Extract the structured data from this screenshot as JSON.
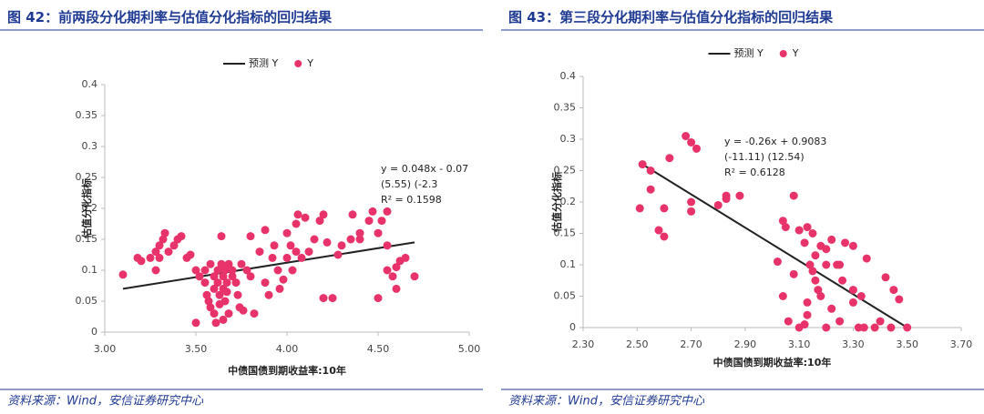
{
  "chart_data": [
    {
      "type": "scatter",
      "title": "图 42：前两段分化期利率与估值分化指标的回归结果",
      "x_label": "中债国债到期收益率:10年",
      "y_label": "估值分化指标",
      "annotations": [
        "y = 0.048x - 0.07",
        "(5.55)   (-2.3",
        "R² = 0.1598"
      ],
      "source": "资料来源：Wind，安信证券研究中心",
      "xlim": [
        3,
        5
      ],
      "xticks": [
        {
          "value": 3,
          "label": "3.00"
        },
        {
          "value": 3.5,
          "label": "3.50"
        },
        {
          "value": 4,
          "label": "4.00"
        },
        {
          "value": 4.5,
          "label": "4.50"
        },
        {
          "value": 5,
          "label": "5.00"
        }
      ],
      "ylim": [
        0,
        0.4
      ],
      "yticks": [
        0,
        0.05,
        0.1,
        0.15,
        0.2,
        0.25,
        0.3,
        0.35,
        0.4
      ],
      "series": [
        {
          "name": "预测 Y",
          "type": "line",
          "color": "#222222",
          "x": [
            3.1,
            4.7
          ],
          "values": [
            0.07,
            0.145
          ]
        },
        {
          "name": "Y",
          "type": "scatter",
          "color": "#e8336a",
          "x": [
            3.1,
            3.18,
            3.2,
            3.25,
            3.28,
            3.3,
            3.32,
            3.33,
            3.35,
            3.3,
            3.28,
            3.38,
            3.4,
            3.42,
            3.45,
            3.47,
            3.5,
            3.5,
            3.52,
            3.55,
            3.55,
            3.56,
            3.57,
            3.58,
            3.58,
            3.6,
            3.6,
            3.6,
            3.61,
            3.62,
            3.62,
            3.63,
            3.63,
            3.64,
            3.64,
            3.65,
            3.65,
            3.65,
            3.66,
            3.66,
            3.67,
            3.67,
            3.68,
            3.68,
            3.7,
            3.7,
            3.72,
            3.73,
            3.74,
            3.75,
            3.76,
            3.78,
            3.8,
            3.8,
            3.82,
            3.85,
            3.88,
            3.88,
            3.9,
            3.92,
            3.93,
            3.95,
            3.96,
            3.98,
            4.0,
            4.0,
            4.02,
            4.03,
            4.05,
            4.05,
            4.06,
            4.08,
            4.1,
            4.12,
            4.15,
            4.18,
            4.2,
            4.22,
            4.2,
            4.25,
            4.28,
            4.3,
            4.35,
            4.36,
            4.4,
            4.45,
            4.47,
            4.5,
            4.5,
            4.52,
            4.55,
            4.55,
            4.58,
            4.6,
            4.62,
            4.65,
            4.7,
            4.6,
            4.55,
            4.4
          ],
          "values": [
            0.093,
            0.12,
            0.115,
            0.12,
            0.13,
            0.14,
            0.15,
            0.16,
            0.13,
            0.12,
            0.1,
            0.14,
            0.15,
            0.155,
            0.12,
            0.125,
            0.1,
            0.015,
            0.09,
            0.1,
            0.08,
            0.06,
            0.05,
            0.11,
            0.04,
            0.09,
            0.07,
            0.03,
            0.015,
            0.1,
            0.08,
            0.06,
            0.045,
            0.11,
            0.155,
            0.09,
            0.07,
            0.02,
            0.05,
            0.1,
            0.08,
            0.065,
            0.03,
            0.11,
            0.1,
            0.09,
            0.08,
            0.06,
            0.04,
            0.11,
            0.035,
            0.1,
            0.155,
            0.09,
            0.03,
            0.13,
            0.165,
            0.08,
            0.06,
            0.12,
            0.14,
            0.1,
            0.07,
            0.085,
            0.16,
            0.12,
            0.14,
            0.1,
            0.13,
            0.175,
            0.19,
            0.12,
            0.185,
            0.13,
            0.15,
            0.18,
            0.19,
            0.145,
            0.055,
            0.055,
            0.125,
            0.14,
            0.15,
            0.19,
            0.16,
            0.18,
            0.195,
            0.16,
            0.055,
            0.18,
            0.195,
            0.14,
            0.09,
            0.105,
            0.115,
            0.12,
            0.09,
            0.07,
            0.1,
            0.15
          ]
        }
      ]
    },
    {
      "type": "scatter",
      "title": "图 43：第三段分化期利率与估值分化指标的回归结果",
      "x_label": "中债国债到期收益率:10年",
      "y_label": "估值分化指标",
      "annotations": [
        "y = -0.26x + 0.9083",
        "(-11.11) (12.54)",
        "R² = 0.6128"
      ],
      "source": "资料来源：Wind，安信证券研究中心",
      "xlim": [
        2.3,
        3.7
      ],
      "xticks": [
        {
          "value": 2.3,
          "label": "2.30"
        },
        {
          "value": 2.5,
          "label": "2.50"
        },
        {
          "value": 2.7,
          "label": "2.70"
        },
        {
          "value": 2.9,
          "label": "2.90"
        },
        {
          "value": 3.1,
          "label": "3.10"
        },
        {
          "value": 3.3,
          "label": "3.30"
        },
        {
          "value": 3.5,
          "label": "3.50"
        },
        {
          "value": 3.7,
          "label": "3.70"
        }
      ],
      "ylim": [
        0,
        0.4
      ],
      "yticks": [
        0,
        0.05,
        0.1,
        0.15,
        0.2,
        0.25,
        0.3,
        0.35,
        0.4
      ],
      "series": [
        {
          "name": "预测 Y",
          "type": "line",
          "color": "#222222",
          "x": [
            2.52,
            3.5
          ],
          "values": [
            0.26,
            0.0
          ]
        },
        {
          "name": "Y",
          "type": "scatter",
          "color": "#e8336a",
          "x": [
            2.51,
            2.52,
            2.55,
            2.55,
            2.58,
            2.6,
            2.6,
            2.62,
            2.68,
            2.7,
            2.72,
            2.7,
            2.7,
            2.8,
            2.83,
            2.83,
            2.88,
            3.02,
            3.04,
            3.05,
            3.04,
            3.06,
            3.08,
            3.08,
            3.1,
            3.12,
            3.1,
            3.12,
            3.13,
            3.15,
            3.14,
            3.15,
            3.16,
            3.17,
            3.18,
            3.16,
            3.18,
            3.2,
            3.2,
            3.22,
            3.24,
            3.25,
            3.26,
            3.27,
            3.3,
            3.3,
            3.3,
            3.32,
            3.33,
            3.35,
            3.38,
            3.42,
            3.44,
            3.45,
            3.47,
            3.5,
            3.13,
            3.2,
            3.25,
            3.34,
            3.4,
            3.13,
            3.22
          ],
          "values": [
            0.19,
            0.26,
            0.25,
            0.22,
            0.155,
            0.19,
            0.145,
            0.27,
            0.305,
            0.295,
            0.285,
            0.2,
            0.185,
            0.195,
            0.21,
            0.205,
            0.21,
            0.105,
            0.17,
            0.16,
            0.05,
            0.01,
            0.21,
            0.085,
            0,
            0.005,
            0.155,
            0.135,
            0.16,
            0.15,
            0.1,
            0.09,
            0.075,
            0.06,
            0.05,
            0.115,
            0.13,
            0.125,
            0.1,
            0.14,
            0.1,
            0.1,
            0.075,
            0.135,
            0.13,
            0.04,
            0.06,
            0,
            0.05,
            0.11,
            0,
            0.08,
            0,
            0.06,
            0.045,
            0,
            0.02,
            0,
            0.01,
            0,
            0.01,
            0.04,
            0.03
          ]
        }
      ]
    }
  ]
}
